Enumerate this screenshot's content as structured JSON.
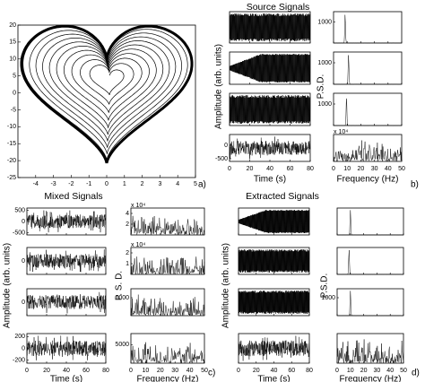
{
  "panels": [
    {
      "label": "a)",
      "xlim": [
        -5,
        5
      ],
      "ylim": [
        -25,
        20
      ],
      "xticks": [
        -4,
        -3,
        -2,
        -1,
        0,
        1,
        2,
        3,
        4,
        5
      ],
      "yticks": [
        -25,
        -20,
        -15,
        -10,
        -5,
        0,
        5,
        10,
        15,
        20
      ]
    },
    {
      "label": "b)",
      "title": "Source Signals",
      "time": {
        "xlabel": "Time (s)",
        "ylabel": "Amplitude (arb. units)",
        "xlim": [
          0,
          80
        ],
        "xticks": [
          0,
          20,
          40,
          60,
          80
        ],
        "rows": [
          {
            "yticks": []
          },
          {
            "yticks": []
          },
          {
            "yticks": []
          },
          {
            "ylim": [
              -600,
              400
            ],
            "yticks": [
              -500,
              0
            ]
          }
        ]
      },
      "psd": {
        "xlabel": "Frequency (Hz)",
        "ylabel": "P.S.D.",
        "xlim": [
          0,
          50
        ],
        "xticks": [
          0,
          10,
          20,
          30,
          40,
          50
        ],
        "rows": [
          {
            "ylim": [
              0,
              1500
            ],
            "yticks": [
              1000
            ]
          },
          {
            "ylim": [
              0,
              1500
            ],
            "yticks": [
              1000
            ]
          },
          {
            "ylim": [
              0,
              1500
            ],
            "yticks": [
              1000
            ]
          },
          {
            "yticks": [],
            "exponent": "x 10⁴"
          }
        ]
      }
    },
    {
      "label": "c)",
      "title": "Mixed Signals",
      "time": {
        "xlabel": "Time (s)",
        "ylabel": "Amplitude (arb. units)",
        "xlim": [
          0,
          80
        ],
        "xticks": [
          0,
          20,
          40,
          60,
          80
        ],
        "rows": [
          {
            "ylim": [
              -600,
              600
            ],
            "yticks": [
              -500,
              0,
              500
            ]
          },
          {
            "ylim": [
              -600,
              600
            ],
            "yticks": [
              0
            ]
          },
          {
            "ylim": [
              -600,
              600
            ],
            "yticks": [
              0
            ]
          },
          {
            "ylim": [
              -250,
              250
            ],
            "yticks": [
              -200,
              0,
              200
            ]
          }
        ]
      },
      "psd": {
        "xlabel": "Frequency (Hz)",
        "ylabel": "P. S. D.",
        "xlim": [
          0,
          50
        ],
        "xticks": [
          0,
          10,
          20,
          30,
          40,
          50
        ],
        "rows": [
          {
            "ylim": [
              0,
              5
            ],
            "yticks": [
              2,
              4
            ],
            "exponent": "x 10⁴"
          },
          {
            "ylim": [
              0,
              2.5
            ],
            "yticks": [
              1,
              2
            ],
            "exponent": "x 10⁴"
          },
          {
            "ylim": [
              0,
              1500
            ],
            "yticks": [
              1000
            ]
          },
          {
            "ylim": [
              0,
              8000
            ],
            "yticks": [
              5000
            ]
          }
        ]
      }
    },
    {
      "label": "d)",
      "title": "Extracted Signals",
      "time": {
        "xlabel": "Time (s)",
        "ylabel": "Amplitude (arb. units)",
        "xlim": [
          0,
          80
        ],
        "xticks": [
          0,
          20,
          40,
          60,
          80
        ],
        "rows": [
          {
            "yticks": []
          },
          {
            "yticks": []
          },
          {
            "yticks": []
          },
          {
            "yticks": []
          }
        ]
      },
      "psd": {
        "xlabel": "Frequency (Hz)",
        "ylabel": "P.S.D.",
        "xlim": [
          0,
          50
        ],
        "xticks": [
          0,
          10,
          20,
          30,
          40,
          50
        ],
        "rows": [
          {
            "yticks": []
          },
          {
            "yticks": []
          },
          {
            "ylim": [
              0,
              1500
            ],
            "yticks": [
              1000
            ]
          },
          {
            "yticks": []
          }
        ]
      }
    }
  ]
}
